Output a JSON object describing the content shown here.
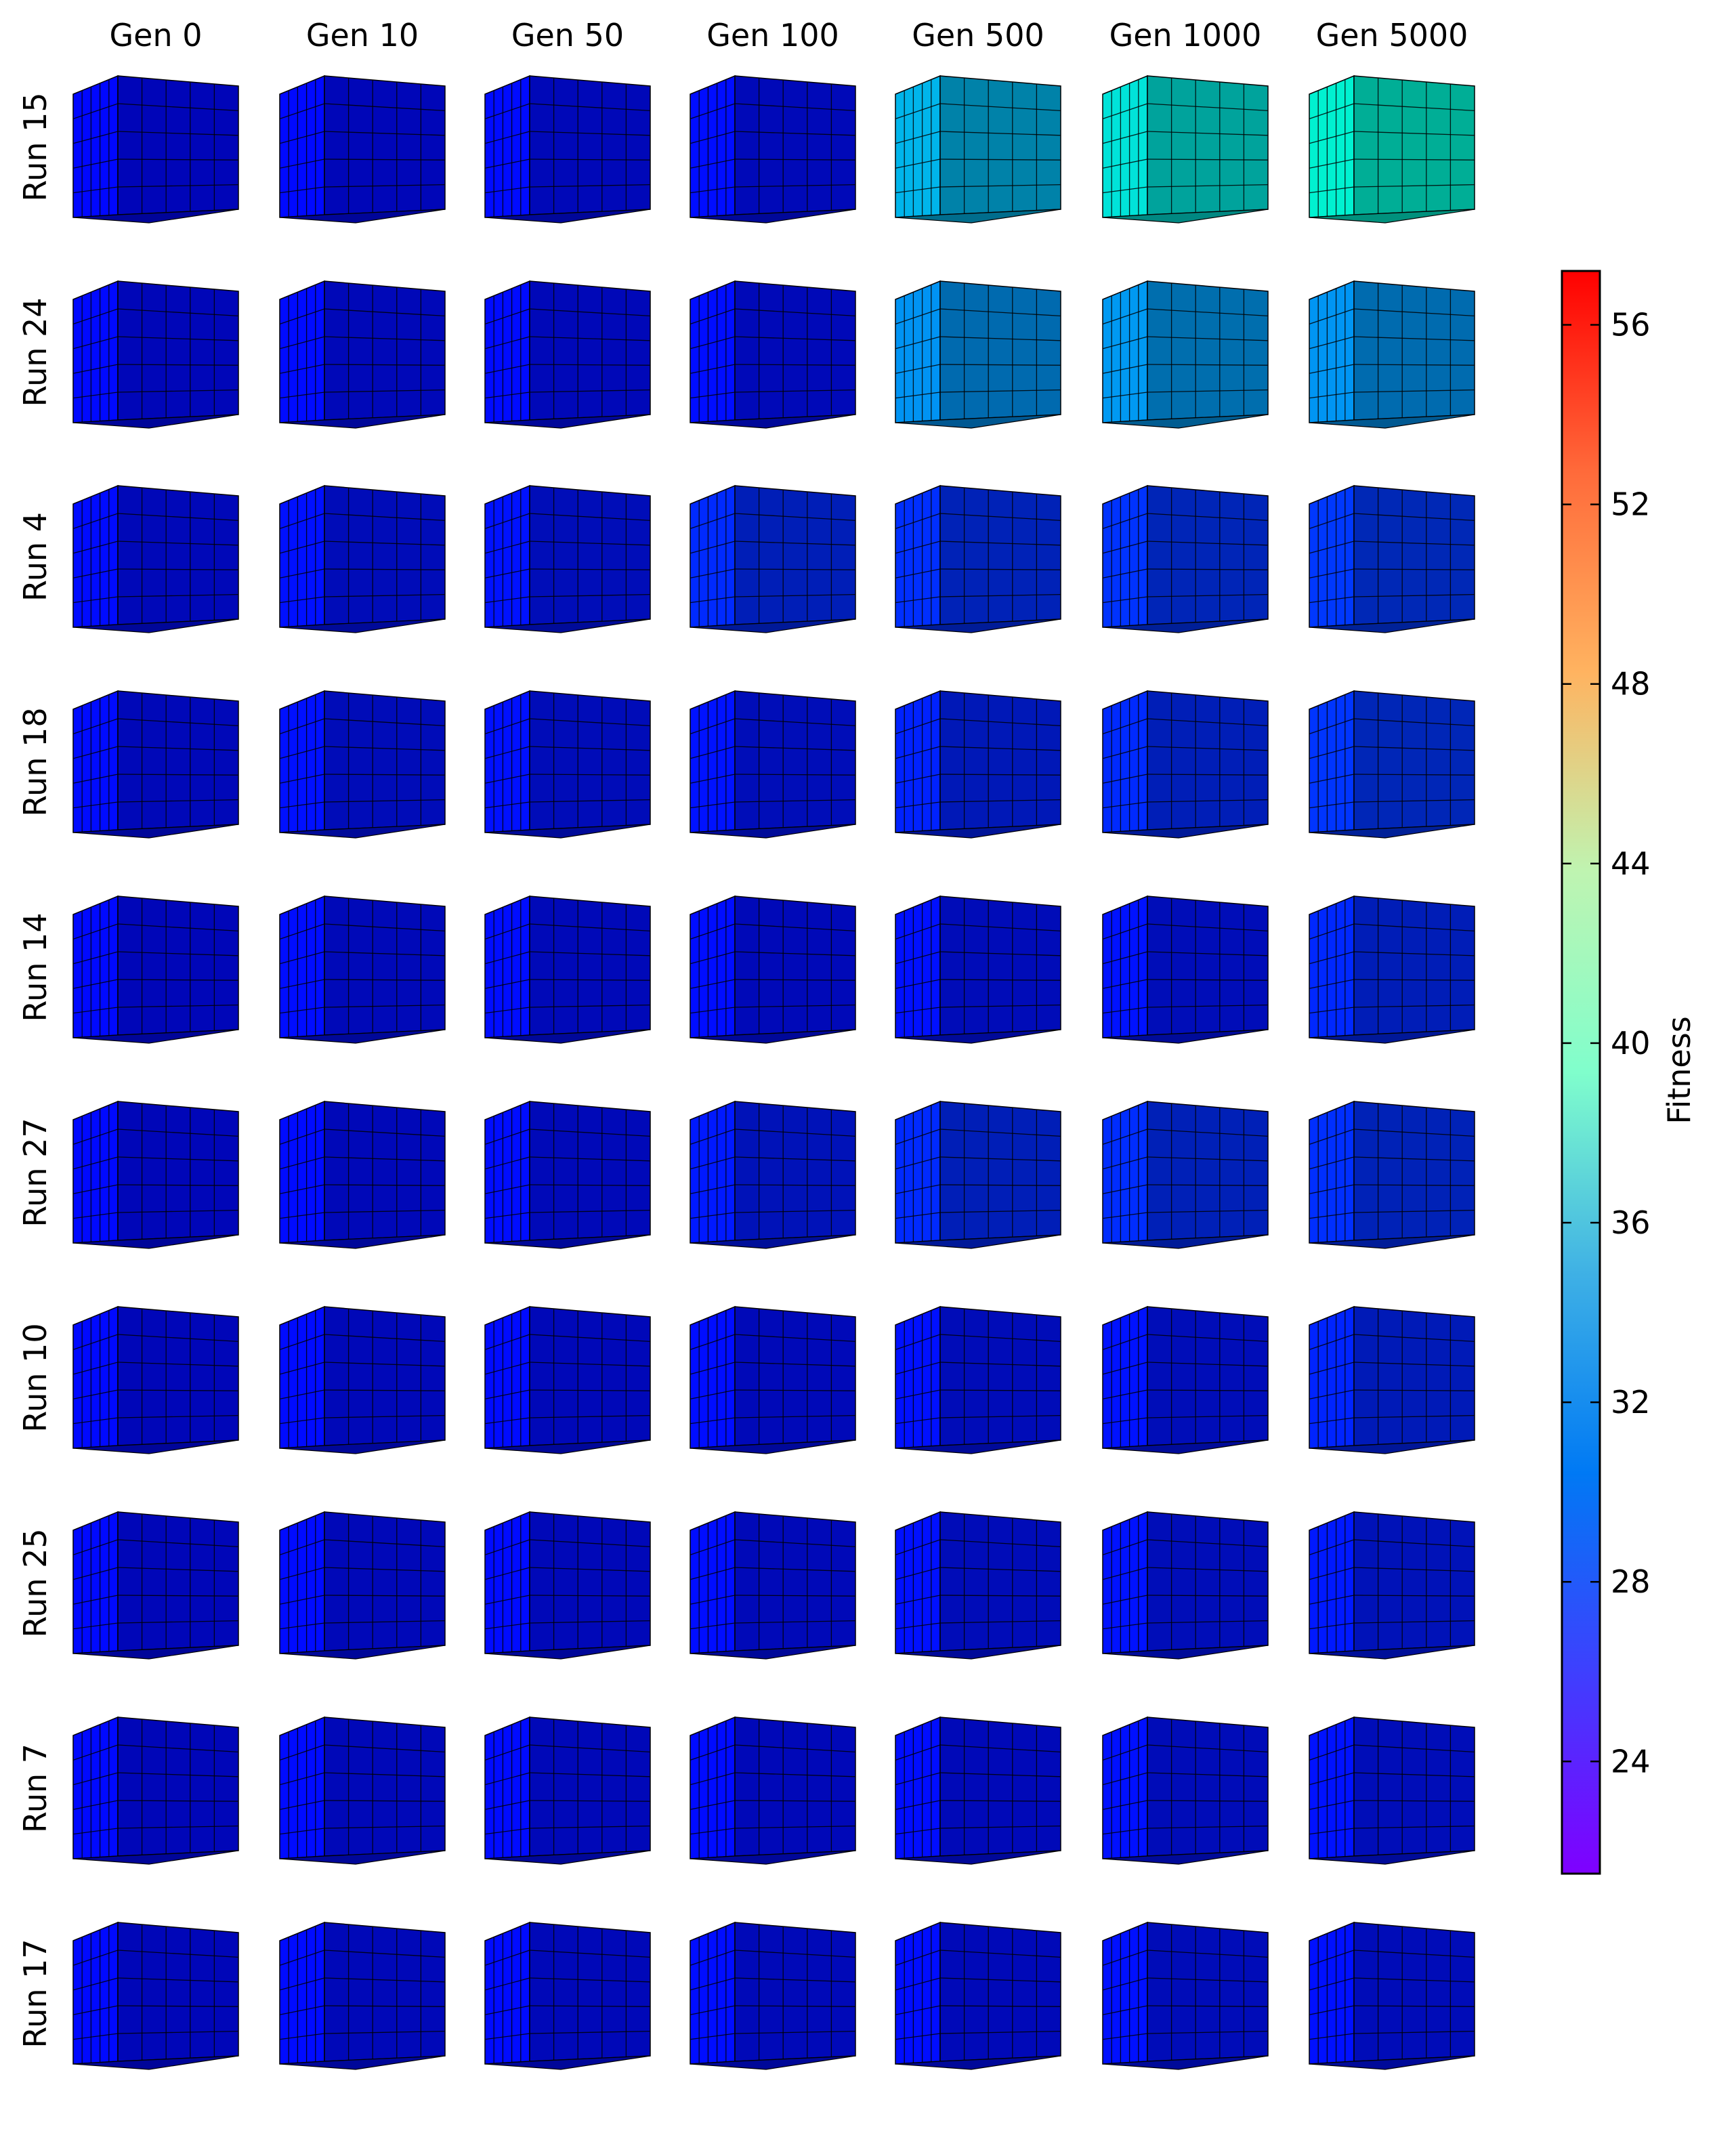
{
  "chart_data": {
    "type": "heatmap",
    "title": "",
    "column_headers": [
      "Gen 0",
      "Gen 10",
      "Gen 50",
      "Gen 100",
      "Gen 500",
      "Gen 1000",
      "Gen 5000"
    ],
    "row_headers": [
      "Run 15",
      "Run 24",
      "Run 4",
      "Run 18",
      "Run 14",
      "Run 27",
      "Run 10",
      "Run 25",
      "Run 7",
      "Run 17"
    ],
    "fitness": [
      [
        21.8,
        21.9,
        22.0,
        22.1,
        30.5,
        34.0,
        35.5
      ],
      [
        21.9,
        22.0,
        22.0,
        22.1,
        28.5,
        28.8,
        28.6
      ],
      [
        22.0,
        22.2,
        22.3,
        23.4,
        23.6,
        23.8,
        24.0
      ],
      [
        22.0,
        22.2,
        22.2,
        22.3,
        23.0,
        23.4,
        23.9
      ],
      [
        21.9,
        22.1,
        22.1,
        22.1,
        22.2,
        22.3,
        23.3
      ],
      [
        21.9,
        22.0,
        22.1,
        22.6,
        23.4,
        23.5,
        23.6
      ],
      [
        21.9,
        22.0,
        22.0,
        22.1,
        22.2,
        22.3,
        23.1
      ],
      [
        21.9,
        22.0,
        22.0,
        22.1,
        22.2,
        22.3,
        22.6
      ],
      [
        21.9,
        22.0,
        22.0,
        22.0,
        22.1,
        22.2,
        22.3
      ],
      [
        21.9,
        22.0,
        22.0,
        22.1,
        22.1,
        22.2,
        22.2
      ]
    ],
    "colorbar": {
      "label": "Fitness",
      "range": [
        21.5,
        57.2
      ],
      "ticks": [
        24,
        28,
        32,
        36,
        40,
        44,
        48,
        52,
        56
      ],
      "colormap": "rainbow"
    },
    "grid": true
  }
}
